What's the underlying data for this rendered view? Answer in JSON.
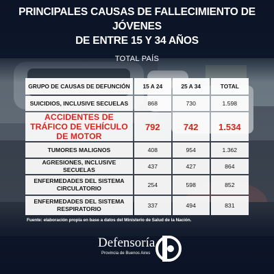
{
  "title": {
    "line1": "PRINCIPALES CAUSAS DE FALLECIMIENTO DE JÓVENES",
    "line2": "DE ENTRE 15 Y 34 AÑOS",
    "subtitle": "TOTAL PAÍS"
  },
  "chart_data": {
    "type": "table",
    "columns": [
      "GRUPO DE CAUSAS DE DEFUNCIÓN",
      "15 A 24",
      "25 A 34",
      "TOTAL"
    ],
    "rows": [
      {
        "cause": "SUICIDIOS, INCLUSIVE SECUELAS",
        "a": "868",
        "b": "730",
        "total": "1.598"
      },
      {
        "cause": "ACCIDENTES DE TRÁFICO DE VEHÍCULO DE MOTOR",
        "a": "792",
        "b": "742",
        "total": "1.534",
        "highlight": true
      },
      {
        "cause": "TUMORES MALIGNOS",
        "a": "408",
        "b": "954",
        "total": "1.362"
      },
      {
        "cause": "AGRESIONES, INCLUSIVE SECUELAS",
        "a": "437",
        "b": "427",
        "total": "864"
      },
      {
        "cause": "ENFERMEDADES DEL SISTEMA CIRCULATORIO",
        "a": "254",
        "b": "598",
        "total": "852"
      },
      {
        "cause": "ENFERMEDADES DEL SISTEMA RESPIRATORIO",
        "a": "337",
        "b": "494",
        "total": "831"
      }
    ]
  },
  "source": "Fuente: elaboración propia en base a datos del Ministerio de Salud de la Nación.",
  "brand": {
    "name": "Defensoría",
    "sub": "Provincia de Buenos Aires",
    "logo_icon": "defensoria-d-icon"
  },
  "colors": {
    "background": "#142035",
    "highlight": "#e0211b",
    "cell": "#ffffff"
  }
}
